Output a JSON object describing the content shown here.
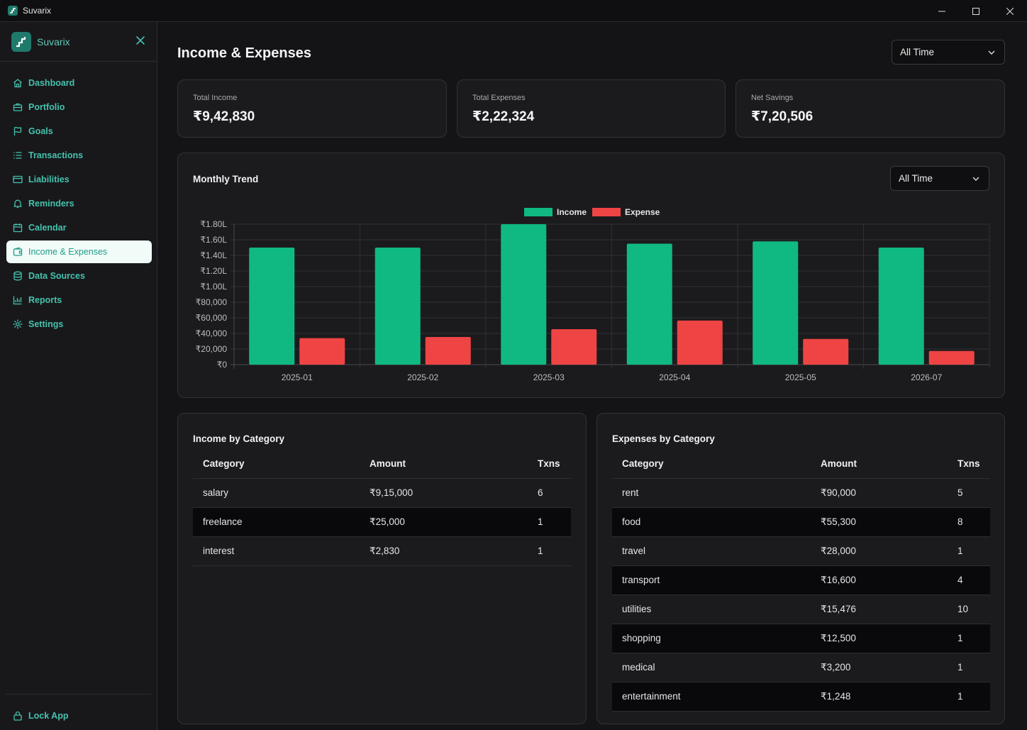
{
  "window": {
    "title": "Suvarix"
  },
  "sidebar": {
    "brand": "Suvarix",
    "items": [
      {
        "label": "Dashboard",
        "icon": "home-icon"
      },
      {
        "label": "Portfolio",
        "icon": "briefcase-icon"
      },
      {
        "label": "Goals",
        "icon": "flag-icon"
      },
      {
        "label": "Transactions",
        "icon": "list-icon"
      },
      {
        "label": "Liabilities",
        "icon": "credit-card-icon"
      },
      {
        "label": "Reminders",
        "icon": "bell-icon"
      },
      {
        "label": "Calendar",
        "icon": "calendar-icon"
      },
      {
        "label": "Income & Expenses",
        "icon": "wallet-icon",
        "active": true
      },
      {
        "label": "Data Sources",
        "icon": "database-icon"
      },
      {
        "label": "Reports",
        "icon": "bar-chart-icon"
      },
      {
        "label": "Settings",
        "icon": "gear-icon"
      }
    ],
    "lock_label": "Lock App"
  },
  "header": {
    "title": "Income & Expenses",
    "period_select": "All Time"
  },
  "stats": [
    {
      "label": "Total Income",
      "value": "₹9,42,830"
    },
    {
      "label": "Total Expenses",
      "value": "₹2,22,324"
    },
    {
      "label": "Net Savings",
      "value": "₹7,20,506"
    }
  ],
  "trend": {
    "title": "Monthly Trend",
    "period_select": "All Time"
  },
  "chart_data": {
    "type": "bar",
    "categories": [
      "2025-01",
      "2025-02",
      "2025-03",
      "2025-04",
      "2025-05",
      "2026-07"
    ],
    "series": [
      {
        "name": "Income",
        "color": "#10b981",
        "values": [
          150000,
          150000,
          180000,
          155000,
          158000,
          150000
        ]
      },
      {
        "name": "Expense",
        "color": "#ef4444",
        "values": [
          34000,
          35500,
          45500,
          56500,
          33000,
          17500
        ]
      }
    ],
    "ylim": [
      0,
      180000
    ],
    "yticks": [
      "₹0",
      "₹20,000",
      "₹40,000",
      "₹60,000",
      "₹80,000",
      "₹1.00L",
      "₹1.20L",
      "₹1.40L",
      "₹1.60L",
      "₹1.80L"
    ],
    "legend": "top-center",
    "grid": true
  },
  "income_table": {
    "title": "Income by Category",
    "columns": [
      "Category",
      "Amount",
      "Txns"
    ],
    "rows": [
      [
        "salary",
        "₹9,15,000",
        "6"
      ],
      [
        "freelance",
        "₹25,000",
        "1"
      ],
      [
        "interest",
        "₹2,830",
        "1"
      ]
    ]
  },
  "expense_table": {
    "title": "Expenses by Category",
    "columns": [
      "Category",
      "Amount",
      "Txns"
    ],
    "rows": [
      [
        "rent",
        "₹90,000",
        "5"
      ],
      [
        "food",
        "₹55,300",
        "8"
      ],
      [
        "travel",
        "₹28,000",
        "1"
      ],
      [
        "transport",
        "₹16,600",
        "4"
      ],
      [
        "utilities",
        "₹15,476",
        "10"
      ],
      [
        "shopping",
        "₹12,500",
        "1"
      ],
      [
        "medical",
        "₹3,200",
        "1"
      ],
      [
        "entertainment",
        "₹1,248",
        "1"
      ]
    ]
  }
}
